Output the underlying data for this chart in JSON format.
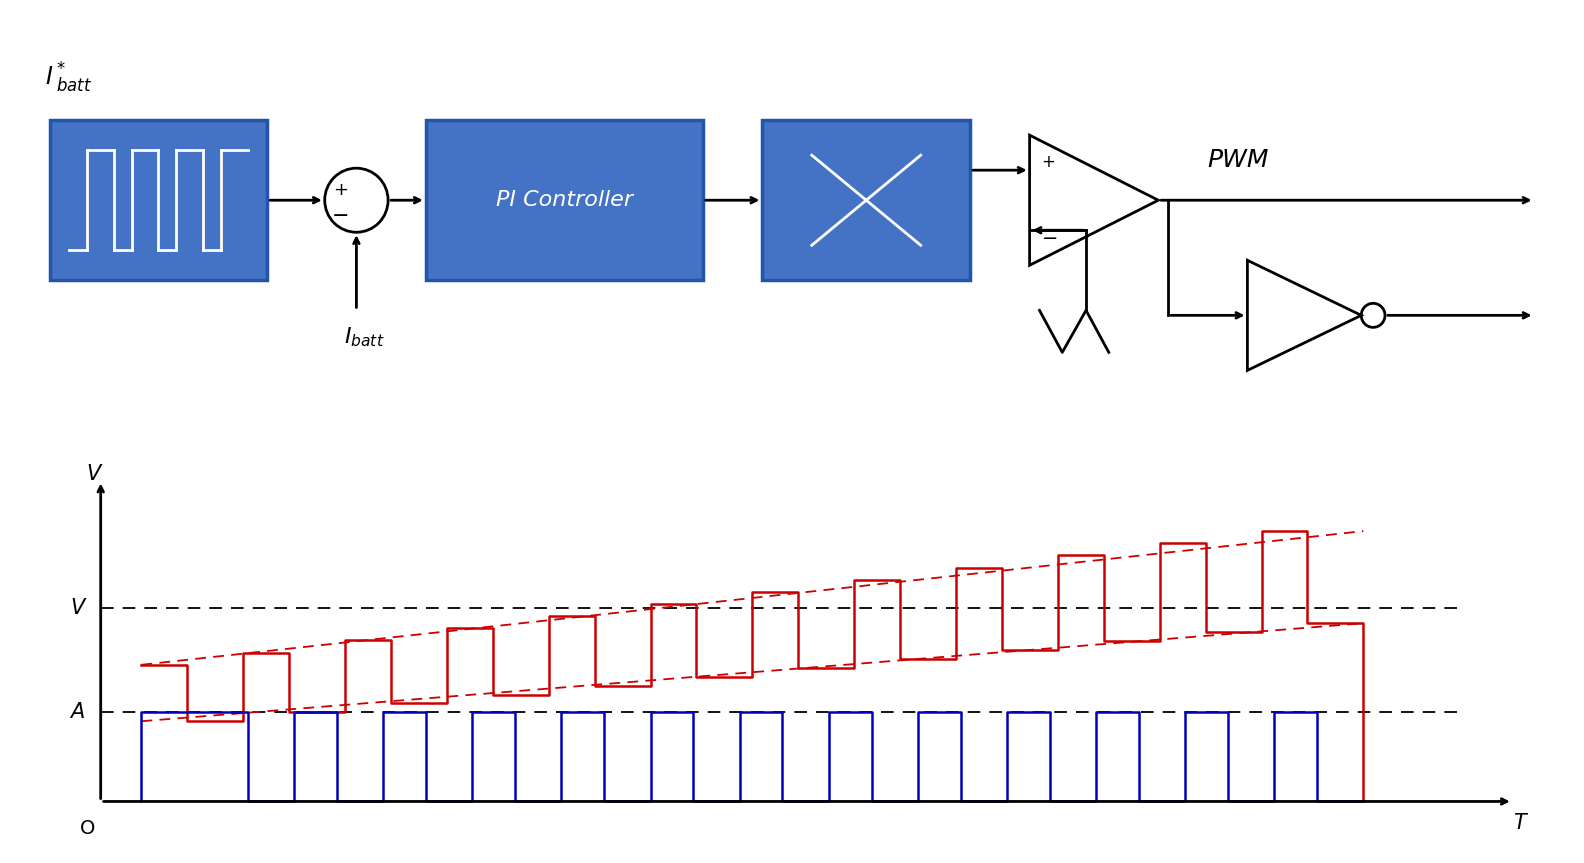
{
  "bg_color": "#ffffff",
  "block_color": "#4472C4",
  "block_edge_color": "#2255AA",
  "block_text_color": "#ffffff",
  "arrow_color": "#000000",
  "red_signal_color": "#CC0000",
  "blue_signal_color": "#0000BB",
  "dashed_line_color": "#000000",
  "axis_color": "#000000",
  "V_level": 0.65,
  "A_level": 0.3,
  "n_red_pulses": 12,
  "n_blue_pulses": 13,
  "pwm_label": "PWM",
  "pi_label": "PI Controller",
  "V_label": "V",
  "A_label": "A",
  "T_label": "T",
  "axis_V_label": "V",
  "O_label": "O"
}
